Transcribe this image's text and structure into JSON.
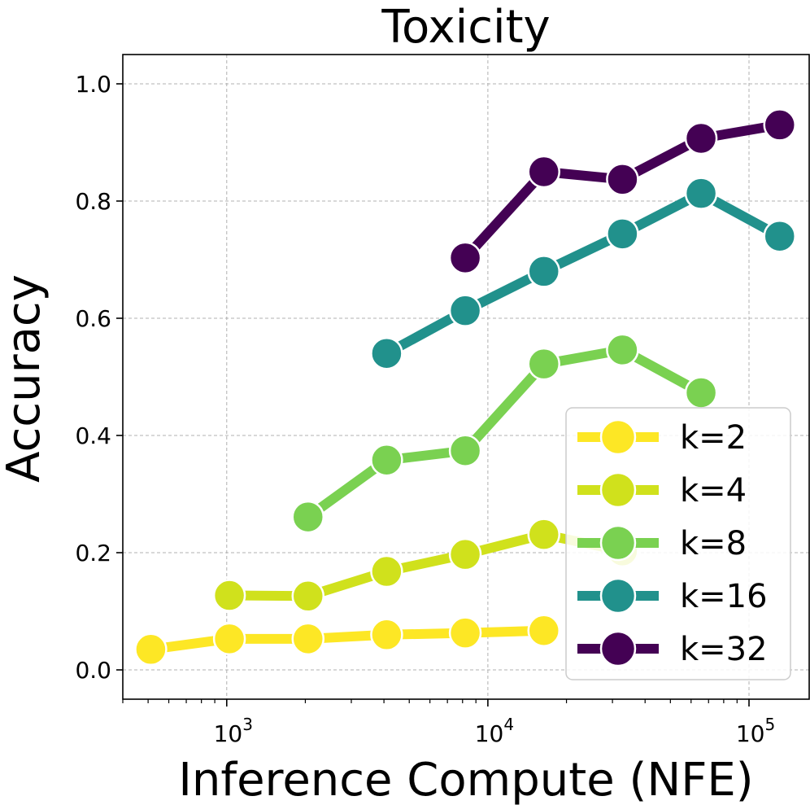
{
  "chart_data": {
    "type": "line",
    "title": "Toxicity",
    "xlabel": "Inference Compute (NFE)",
    "ylabel": "Accuracy",
    "xscale": "log",
    "xlim": [
      400,
      170000
    ],
    "ylim": [
      -0.05,
      1.05
    ],
    "grid": true,
    "legend_position": "lower-right",
    "y_ticks": [
      "0.0",
      "0.2",
      "0.4",
      "0.6",
      "0.8",
      "1.0"
    ],
    "x_ticks": [
      {
        "base": "10",
        "exp": "3",
        "value": 1000
      },
      {
        "base": "10",
        "exp": "4",
        "value": 10000
      },
      {
        "base": "10",
        "exp": "5",
        "value": 100000
      }
    ],
    "series": [
      {
        "name": "k=2",
        "color": "#fde725",
        "x": [
          512,
          1024,
          2048,
          4096,
          8192,
          16384
        ],
        "y": [
          0.035,
          0.053,
          0.053,
          0.06,
          0.063,
          0.067
        ]
      },
      {
        "name": "k=4",
        "color": "#d0e11c",
        "x": [
          1024,
          2048,
          4096,
          8192,
          16384,
          32768
        ],
        "y": [
          0.127,
          0.126,
          0.168,
          0.197,
          0.231,
          0.203
        ]
      },
      {
        "name": "k=8",
        "color": "#7ad151",
        "x": [
          2048,
          4096,
          8192,
          16384,
          32768,
          65536
        ],
        "y": [
          0.261,
          0.358,
          0.374,
          0.522,
          0.546,
          0.473
        ]
      },
      {
        "name": "k=16",
        "color": "#21918c",
        "x": [
          4096,
          8192,
          16384,
          32768,
          65536,
          131072
        ],
        "y": [
          0.54,
          0.613,
          0.68,
          0.744,
          0.813,
          0.74
        ]
      },
      {
        "name": "k=32",
        "color": "#440154",
        "x": [
          8192,
          16384,
          32768,
          65536,
          131072
        ],
        "y": [
          0.703,
          0.85,
          0.837,
          0.907,
          0.93
        ]
      }
    ]
  }
}
